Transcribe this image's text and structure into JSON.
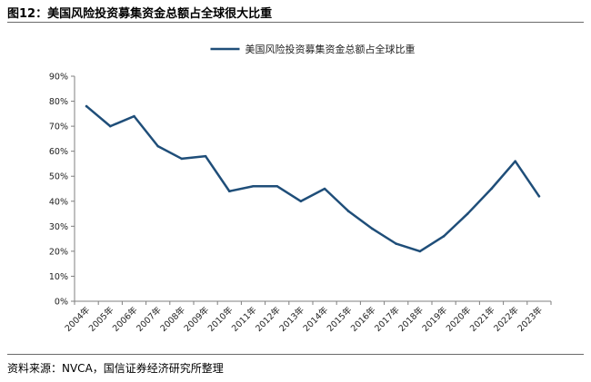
{
  "figure": {
    "title": "图12：美国风险投资募集资金总额占全球很大比重",
    "source": "资料来源：NVCA，国信证券经济研究所整理"
  },
  "chart_data": {
    "type": "line",
    "title": "",
    "xlabel": "",
    "ylabel": "",
    "categories": [
      "2004年",
      "2005年",
      "2006年",
      "2007年",
      "2008年",
      "2009年",
      "2010年",
      "2011年",
      "2012年",
      "2013年",
      "2014年",
      "2015年",
      "2016年",
      "2017年",
      "2018年",
      "2019年",
      "2020年",
      "2021年",
      "2022年",
      "2023年"
    ],
    "series": [
      {
        "name": "美国风险投资募集资金总额占全球比重",
        "values": [
          78,
          70,
          74,
          62,
          57,
          58,
          44,
          46,
          46,
          40,
          45,
          36,
          29,
          23,
          20,
          26,
          35,
          45,
          56,
          42
        ],
        "color": "#1f4e79"
      }
    ],
    "y_ticks": [
      "0%",
      "10%",
      "20%",
      "30%",
      "40%",
      "50%",
      "60%",
      "70%",
      "80%",
      "90%"
    ],
    "ylim": [
      0,
      90
    ],
    "grid": false,
    "legend": "top-center"
  }
}
